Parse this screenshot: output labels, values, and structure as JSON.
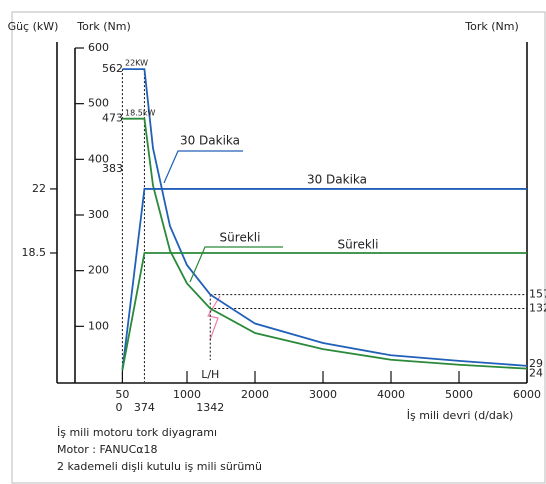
{
  "chart_data": {
    "type": "line",
    "y_title": "Tork (Nm)",
    "y2_title": "Güç (kW)",
    "y_title_right": "Tork (Nm)",
    "x_title": "İş mili devri (d/dak)",
    "xlim": [
      0,
      6000
    ],
    "xticks": [
      50,
      1000,
      2000,
      3000,
      4000,
      5000,
      6000
    ],
    "xticks2": [
      0,
      374,
      1342
    ],
    "ylim": [
      0,
      600
    ],
    "yticks": [
      100,
      200,
      300,
      400,
      500,
      600
    ],
    "y2lim": [
      11.45,
      29.7
    ],
    "y2ticks": [
      22,
      18.5
    ],
    "left_labels": [
      562,
      473,
      383
    ],
    "right_labels": [
      157,
      132,
      29,
      24
    ],
    "series": [
      {
        "name": "30 Dakika",
        "color": "#2060b8",
        "axis": "y",
        "x": [
          50,
          374,
          500,
          750,
          1000,
          1342,
          2000,
          3000,
          4000,
          5000,
          6000
        ],
        "values": [
          562,
          562,
          420,
          280,
          210,
          157,
          105,
          70,
          48,
          38,
          29
        ]
      },
      {
        "name": "Sürekli",
        "color": "#2a8a3a",
        "axis": "y",
        "x": [
          50,
          374,
          500,
          750,
          1000,
          1342,
          2000,
          3000,
          4000,
          5000,
          6000
        ],
        "values": [
          473,
          473,
          353,
          236,
          177,
          132,
          88,
          59,
          40,
          31,
          24
        ]
      },
      {
        "name": "30 Dakika",
        "color": "#2060b8",
        "axis": "y2",
        "x": [
          50,
          374,
          6000
        ],
        "values": [
          12.1,
          22,
          22
        ]
      },
      {
        "name": "Sürekli",
        "color": "#2a8a3a",
        "axis": "y2",
        "x": [
          50,
          374,
          6000
        ],
        "values": [
          12.1,
          18.5,
          18.5
        ]
      }
    ],
    "annotations": [
      "22KW",
      "18.5kW",
      "L/H"
    ],
    "notes": [
      "İş mili motoru tork diyagramı",
      "Motor : FANUCα18",
      "2 kademeli dişli kutulu iş mili sürümü"
    ]
  }
}
